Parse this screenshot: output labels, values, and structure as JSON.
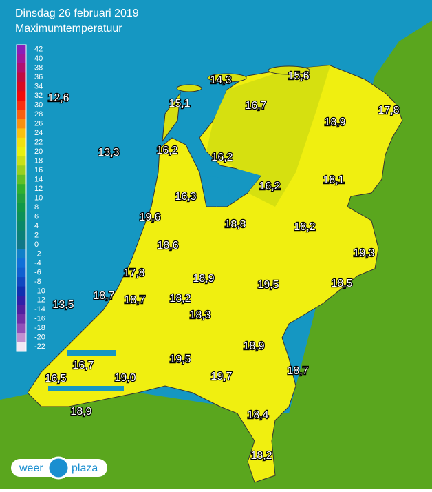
{
  "header": {
    "title": "Dinsdag 26 februari 2019",
    "subtitle": "Maximumtemperatuur"
  },
  "legend": {
    "labels": [
      42,
      40,
      38,
      36,
      34,
      32,
      30,
      28,
      26,
      24,
      22,
      20,
      18,
      16,
      14,
      12,
      10,
      8,
      6,
      4,
      2,
      0,
      -2,
      -4,
      -6,
      -8,
      -10,
      -12,
      -14,
      -16,
      -18,
      -20,
      -22
    ],
    "colors": [
      "#8a1fb8",
      "#a0189c",
      "#b01070",
      "#c00c40",
      "#d80a20",
      "#f00a0a",
      "#f83010",
      "#f86010",
      "#f89010",
      "#f8c010",
      "#f0e010",
      "#e8f010",
      "#c8e018",
      "#98d020",
      "#60c028",
      "#30b030",
      "#20a040",
      "#109848",
      "#0c9058",
      "#0a8868",
      "#0a8078",
      "#107888",
      "#1080c8",
      "#1070d8",
      "#1060d0",
      "#1048c0",
      "#1030b0",
      "#3020a8",
      "#5020a0",
      "#7030a8",
      "#9050b8",
      "#c090d0",
      "#f0e8f4"
    ]
  },
  "map": {
    "labels": [
      "12,6",
      "13,3",
      "14,3",
      "15,6",
      "15,1",
      "16,7",
      "17,8",
      "18,9",
      "16,2",
      "16,2",
      "16,2",
      "18,1",
      "16,3",
      "19,6",
      "18,8",
      "18,2",
      "19,3",
      "18,6",
      "17,8",
      "18,9",
      "19,5",
      "18,5",
      "18,7",
      "18,7",
      "18,2",
      "13,5",
      "18,3",
      "18,9",
      "16,7",
      "19,5",
      "18,7",
      "16,5",
      "19,0",
      "19,7",
      "18,9",
      "18,4",
      "18,2"
    ]
  },
  "logo": {
    "left": "weer",
    "right": "plaza"
  }
}
